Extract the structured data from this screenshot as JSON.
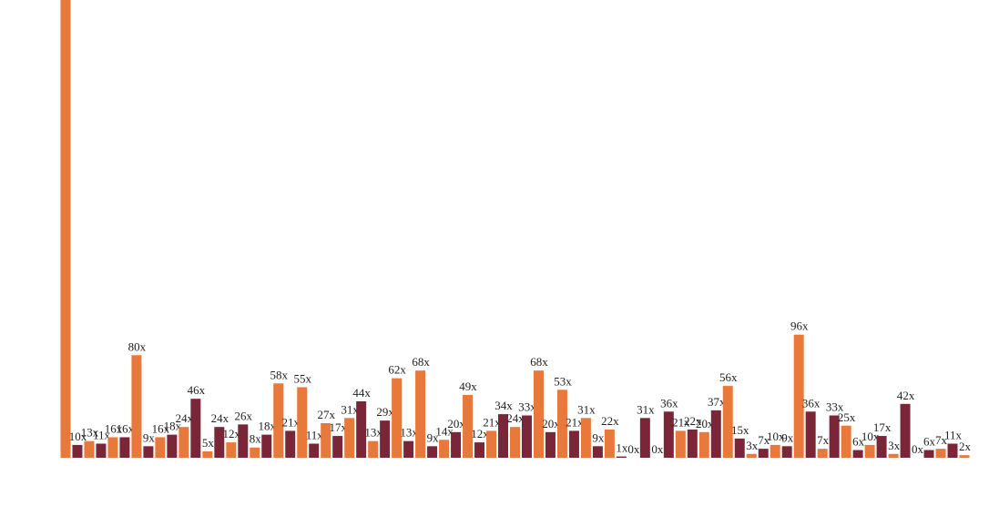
{
  "chart_data": {
    "type": "bar",
    "categories": [
      null,
      null,
      null,
      null,
      null,
      null,
      null,
      null,
      null,
      null,
      null,
      null,
      null,
      null,
      null,
      null,
      null,
      null,
      null,
      null,
      null,
      null,
      null,
      null,
      null,
      null,
      null,
      null,
      null,
      null,
      null,
      null,
      null,
      null,
      null,
      null,
      null,
      null,
      null,
      null,
      null,
      null,
      null,
      null,
      null,
      null,
      null,
      null,
      null,
      null,
      null,
      null,
      null,
      null,
      null,
      null,
      null,
      null,
      null,
      null,
      null,
      null,
      null,
      null,
      null,
      null,
      null,
      null,
      null,
      null,
      null,
      null,
      null,
      null,
      null,
      null,
      null
    ],
    "values": [
      357,
      10,
      13,
      11,
      16,
      16,
      80,
      9,
      16,
      18,
      24,
      46,
      5,
      24,
      12,
      26,
      8,
      18,
      58,
      21,
      55,
      11,
      27,
      17,
      31,
      44,
      13,
      29,
      62,
      13,
      68,
      9,
      14,
      20,
      49,
      12,
      21,
      34,
      24,
      33,
      68,
      20,
      53,
      21,
      31,
      9,
      22,
      1,
      0,
      31,
      0,
      36,
      21,
      22,
      20,
      37,
      56,
      15,
      3,
      7,
      10,
      9,
      96,
      36,
      7,
      33,
      25,
      6,
      10,
      17,
      3,
      42,
      0,
      6,
      7,
      11,
      2
    ],
    "value_labels": [
      null,
      "10x",
      "13x",
      "11x",
      "16x",
      "16x",
      "80x",
      "9x",
      "16x",
      "18x",
      "24x",
      "46x",
      "5x",
      "24x",
      "12x",
      "26x",
      "8x",
      "18x",
      "58x",
      "21x",
      "55x",
      "11x",
      "27x",
      "17x",
      "31x",
      "44x",
      "13x",
      "29x",
      "62x",
      "13x",
      "68x",
      "9x",
      "14x",
      "20x",
      "49x",
      "12x",
      "21x",
      "34x",
      "24x",
      "33x",
      "68x",
      "20x",
      "53x",
      "21x",
      "31x",
      "9x",
      "22x",
      "1x",
      "0x",
      "31x",
      "0x",
      "36x",
      "21x",
      "22x",
      "20x",
      "37x",
      "56x",
      "15x",
      "3x",
      "7x",
      "10x",
      "9x",
      "96x",
      "36x",
      "7x",
      "33x",
      "25x",
      "6x",
      "10x",
      "17x",
      "3x",
      "42x",
      "0x",
      "6x",
      "7x",
      "11x",
      "2x"
    ],
    "colors": [
      "#e8793a",
      "#7b2638"
    ],
    "ylim": [
      0,
      357
    ]
  }
}
